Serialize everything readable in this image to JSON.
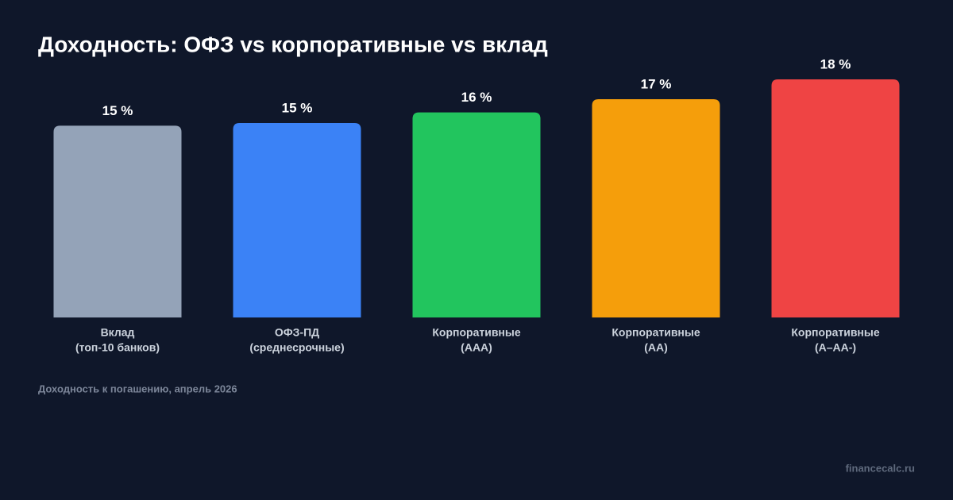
{
  "chart_data": {
    "type": "bar",
    "title": "Доходность: ОФЗ vs корпоративные vs вклад",
    "categories": [
      [
        "Вклад",
        "(топ-10 банков)"
      ],
      [
        "ОФЗ-ПД",
        "(среднесрочные)"
      ],
      [
        "Корпоративные",
        "(AAA)"
      ],
      [
        "Корпоративные",
        "(AA)"
      ],
      [
        "Корпоративные",
        "(A–AA-)"
      ]
    ],
    "values": [
      14.5,
      14.7,
      15.5,
      16.5,
      18.0
    ],
    "value_labels": [
      "15 %",
      "15 %",
      "16 %",
      "17 %",
      "18 %"
    ],
    "colors": [
      "#94a3b8",
      "#3b82f6",
      "#22c55e",
      "#f59e0b",
      "#ef4444"
    ],
    "note": "Доходность к погашению, апрель 2026",
    "source": "financecalc.ru"
  }
}
